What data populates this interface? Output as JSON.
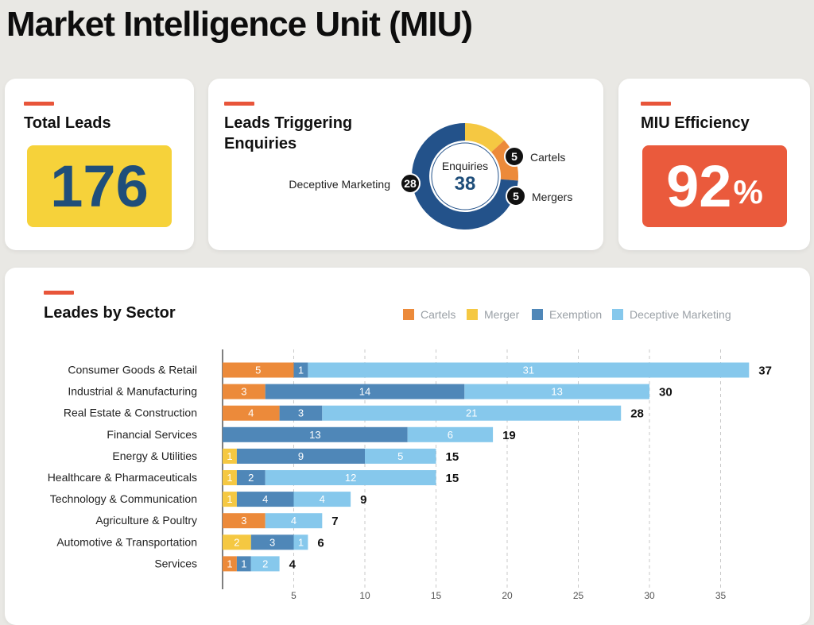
{
  "page": {
    "title": "Market Intelligence Unit (MIU)"
  },
  "colors": {
    "accent": "#e8553a",
    "cartels": "#ec8a3a",
    "merger": "#f5c842",
    "exemption": "#4f87b8",
    "deceptive": "#86c8ec",
    "kpi_yellow": "#f6d23a",
    "kpi_red": "#ea5a3c",
    "navy": "#1f4e7a"
  },
  "total_leads": {
    "title": "Total Leads",
    "value": "176"
  },
  "enquiries": {
    "title_line1": "Leads Triggering",
    "title_line2": "Enquiries",
    "center_label": "Enquiries",
    "center_value": "38",
    "segments": [
      {
        "label": "Cartels",
        "value": 5,
        "color": "#f5c842"
      },
      {
        "label": "Mergers",
        "value": 5,
        "color": "#ec8a3a"
      },
      {
        "label": "Deceptive Marketing",
        "value": 28,
        "color": "#23528a"
      }
    ]
  },
  "efficiency": {
    "title": "MIU Efficiency",
    "value": "92",
    "unit": "%"
  },
  "chart_data": {
    "type": "bar",
    "orientation": "horizontal",
    "stacked": true,
    "title": "Leades by Sector",
    "categories": [
      "Consumer Goods & Retail",
      "Industrial & Manufacturing",
      "Real Estate & Construction",
      "Financial Services",
      "Energy & Utilities",
      "Healthcare & Pharmaceuticals",
      "Technology & Communication",
      "Agriculture & Poultry",
      "Automotive & Transportation",
      "Services"
    ],
    "series": [
      {
        "name": "Cartels",
        "color": "#ec8a3a",
        "values": [
          5,
          3,
          4,
          0,
          0,
          0,
          0,
          3,
          0,
          1
        ]
      },
      {
        "name": "Merger",
        "color": "#f5c842",
        "values": [
          0,
          0,
          0,
          0,
          1,
          1,
          1,
          0,
          2,
          0
        ]
      },
      {
        "name": "Exemption",
        "color": "#4f87b8",
        "values": [
          1,
          14,
          3,
          13,
          9,
          2,
          4,
          0,
          3,
          1
        ]
      },
      {
        "name": "Deceptive Marketing",
        "color": "#86c8ec",
        "values": [
          31,
          13,
          21,
          6,
          5,
          12,
          4,
          4,
          1,
          2
        ]
      }
    ],
    "totals": [
      37,
      30,
      28,
      19,
      15,
      15,
      9,
      7,
      6,
      4
    ],
    "xticks": [
      5,
      10,
      15,
      20,
      25,
      30,
      35
    ],
    "xlim": [
      0,
      38
    ],
    "legend_position": "top-right",
    "grid": "vertical dashed"
  }
}
